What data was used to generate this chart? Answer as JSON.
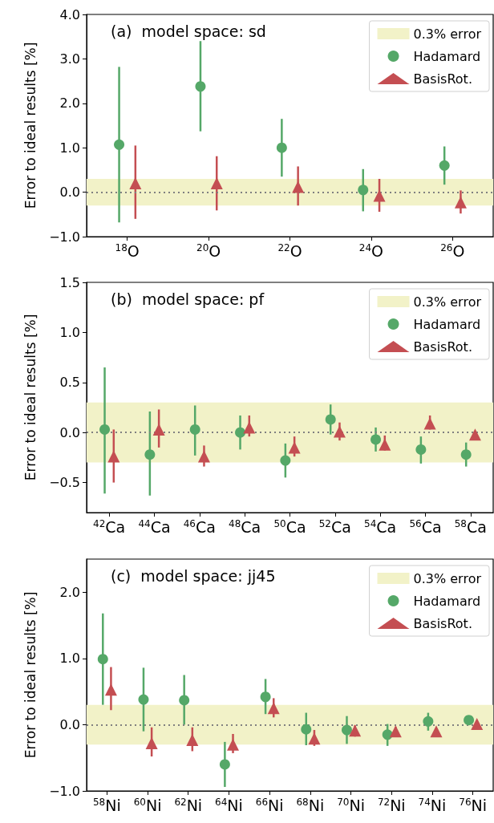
{
  "chart_data": [
    {
      "type": "scatter",
      "title": "(a)  model space: sd",
      "ylabel": "Error to ideal results [%]",
      "categories": [
        "$^{18}$O",
        "$^{20}$O",
        "$^{22}$O",
        "$^{24}$O",
        "$^{26}$O"
      ],
      "ylim": [
        -1,
        4
      ],
      "yticks": [
        {
          "value": -1,
          "label": "−1.0"
        },
        {
          "value": 0,
          "label": "0.0"
        },
        {
          "value": 1,
          "label": "1.0"
        },
        {
          "value": 2,
          "label": "2.0"
        },
        {
          "value": 3,
          "label": "3.0"
        },
        {
          "value": 4,
          "label": "4.0"
        }
      ],
      "series": [
        {
          "name": "Hadamard",
          "color": "#55a868",
          "marker": "circle",
          "values": [
            1.07,
            2.38,
            1.0,
            0.05,
            0.6
          ],
          "errors": [
            [
              -0.68,
              2.82
            ],
            [
              1.37,
              3.4
            ],
            [
              0.35,
              1.65
            ],
            [
              -0.43,
              0.52
            ],
            [
              0.17,
              1.03
            ]
          ]
        },
        {
          "name": "BasisRot.",
          "color": "#c44e52",
          "marker": "triangle",
          "values": [
            0.2,
            0.2,
            0.12,
            -0.08,
            -0.23
          ],
          "errors": [
            [
              -0.6,
              1.05
            ],
            [
              -0.41,
              0.81
            ],
            [
              -0.3,
              0.58
            ],
            [
              -0.44,
              0.3
            ],
            [
              -0.48,
              0.04
            ]
          ]
        }
      ],
      "bands": [
        {
          "axis": "y",
          "from": -0.3,
          "to": 0.3,
          "label": "0.3% error",
          "color": "#f2f2c8"
        }
      ],
      "ref_lines": [
        {
          "axis": "y",
          "value": 0,
          "color": "#808080",
          "line_style": "dotted"
        }
      ],
      "legend": "top right"
    },
    {
      "type": "scatter",
      "title": "(b)  model space: pf",
      "ylabel": "Error to ideal results [%]",
      "categories": [
        "$^{42}$Ca",
        "$^{44}$Ca",
        "$^{46}$Ca",
        "$^{48}$Ca",
        "$^{50}$Ca",
        "$^{52}$Ca",
        "$^{54}$Ca",
        "$^{56}$Ca",
        "$^{58}$Ca"
      ],
      "ylim": [
        -0.8,
        1.5
      ],
      "yticks": [
        {
          "value": -0.5,
          "label": "−0.5"
        },
        {
          "value": 0,
          "label": "0.0"
        },
        {
          "value": 0.5,
          "label": "0.5"
        },
        {
          "value": 1,
          "label": "1.0"
        },
        {
          "value": 1.5,
          "label": "1.5"
        }
      ],
      "series": [
        {
          "name": "Hadamard",
          "color": "#55a868",
          "marker": "circle",
          "values": [
            0.03,
            -0.22,
            0.03,
            0.0,
            -0.28,
            0.13,
            -0.07,
            -0.17,
            -0.22
          ],
          "errors": [
            [
              -0.61,
              0.65
            ],
            [
              -0.63,
              0.21
            ],
            [
              -0.23,
              0.27
            ],
            [
              -0.17,
              0.17
            ],
            [
              -0.45,
              -0.11
            ],
            [
              -0.02,
              0.28
            ],
            [
              -0.19,
              0.05
            ],
            [
              -0.31,
              -0.04
            ],
            [
              -0.34,
              -0.1
            ]
          ]
        },
        {
          "name": "BasisRot.",
          "color": "#c44e52",
          "marker": "triangle",
          "values": [
            -0.24,
            0.03,
            -0.24,
            0.05,
            -0.15,
            0.01,
            -0.12,
            0.09,
            -0.02
          ],
          "errors": [
            [
              -0.5,
              0.03
            ],
            [
              -0.15,
              0.23
            ],
            [
              -0.34,
              -0.13
            ],
            [
              -0.04,
              0.17
            ],
            [
              -0.24,
              -0.04
            ],
            [
              -0.08,
              0.1
            ],
            [
              -0.18,
              -0.03
            ],
            [
              0.03,
              0.17
            ],
            null
          ]
        }
      ],
      "bands": [
        {
          "axis": "y",
          "from": -0.3,
          "to": 0.3,
          "label": "0.3% error",
          "color": "#f2f2c8"
        }
      ],
      "ref_lines": [
        {
          "axis": "y",
          "value": 0,
          "color": "#808080",
          "line_style": "dotted"
        }
      ],
      "legend": "top right"
    },
    {
      "type": "scatter",
      "title": "(c)  model space: jj45",
      "ylabel": "Error to ideal results [%]",
      "categories": [
        "$^{58}$Ni",
        "$^{60}$Ni",
        "$^{62}$Ni",
        "$^{64}$Ni",
        "$^{66}$Ni",
        "$^{68}$Ni",
        "$^{70}$Ni",
        "$^{72}$Ni",
        "$^{74}$Ni",
        "$^{76}$Ni"
      ],
      "ylim": [
        -1,
        2.5
      ],
      "yticks": [
        {
          "value": -1,
          "label": "−1.0"
        },
        {
          "value": 0,
          "label": "0.0"
        },
        {
          "value": 1,
          "label": "1.0"
        },
        {
          "value": 2,
          "label": "2.0"
        }
      ],
      "series": [
        {
          "name": "Hadamard",
          "color": "#55a868",
          "marker": "circle",
          "values": [
            0.99,
            0.38,
            0.37,
            -0.6,
            0.42,
            -0.07,
            -0.08,
            -0.15,
            0.05,
            0.07
          ],
          "errors": [
            [
              0.3,
              1.68
            ],
            [
              -0.1,
              0.86
            ],
            [
              0.0,
              0.75
            ],
            [
              -0.94,
              -0.26
            ],
            [
              0.16,
              0.69
            ],
            [
              -0.31,
              0.18
            ],
            [
              -0.29,
              0.13
            ],
            [
              -0.32,
              0.01
            ],
            [
              -0.09,
              0.18
            ],
            null
          ]
        },
        {
          "name": "BasisRot.",
          "color": "#c44e52",
          "marker": "triangle",
          "values": [
            0.53,
            -0.28,
            -0.23,
            -0.3,
            0.25,
            -0.21,
            -0.09,
            -0.1,
            -0.1,
            0.01
          ],
          "errors": [
            [
              0.22,
              0.87
            ],
            [
              -0.48,
              -0.04
            ],
            [
              -0.4,
              -0.04
            ],
            [
              -0.43,
              -0.14
            ],
            [
              0.11,
              0.4
            ],
            [
              -0.32,
              -0.08
            ],
            [
              -0.18,
              -0.01
            ],
            [
              -0.17,
              -0.03
            ],
            null,
            null
          ]
        }
      ],
      "bands": [
        {
          "axis": "y",
          "from": -0.3,
          "to": 0.3,
          "label": "0.3% error",
          "color": "#f2f2c8"
        }
      ],
      "ref_lines": [
        {
          "axis": "y",
          "value": 0,
          "color": "#808080",
          "line_style": "dotted"
        }
      ],
      "legend": "top right"
    }
  ]
}
